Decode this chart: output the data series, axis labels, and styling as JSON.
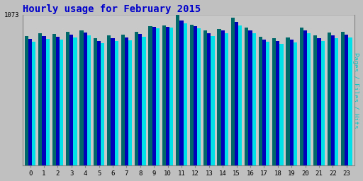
{
  "title": "Hourly usage for February 2015",
  "hours": [
    0,
    1,
    2,
    3,
    4,
    5,
    6,
    7,
    8,
    9,
    10,
    11,
    12,
    13,
    14,
    15,
    16,
    17,
    18,
    19,
    20,
    21,
    22,
    23
  ],
  "pages": [
    920,
    940,
    935,
    950,
    960,
    905,
    925,
    930,
    950,
    990,
    995,
    1073,
    1000,
    960,
    970,
    1050,
    980,
    915,
    905,
    910,
    980,
    925,
    945,
    950
  ],
  "files": [
    900,
    920,
    915,
    930,
    945,
    885,
    905,
    910,
    935,
    985,
    988,
    1030,
    990,
    940,
    960,
    1020,
    960,
    895,
    885,
    895,
    960,
    905,
    925,
    932
  ],
  "hits": [
    880,
    900,
    895,
    910,
    925,
    868,
    885,
    890,
    915,
    975,
    980,
    1010,
    975,
    920,
    940,
    995,
    940,
    878,
    865,
    875,
    940,
    885,
    905,
    912
  ],
  "ymax": 1073,
  "pages_color": "#006868",
  "files_color": "#0000bb",
  "hits_color": "#00e0e8",
  "bg_color": "#c0c0c0",
  "plot_bg": "#c8c8c8",
  "title_color": "#0000cc",
  "ylabel_color": "#00c8c8",
  "bar_width": 0.27,
  "figsize": [
    5.12,
    2.56
  ],
  "dpi": 100
}
